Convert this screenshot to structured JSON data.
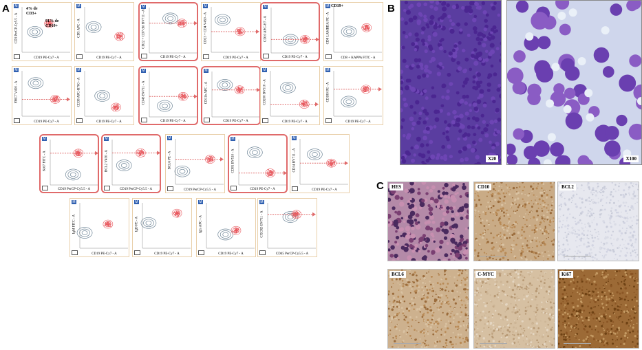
{
  "panels": {
    "a": "A",
    "b": "B",
    "c": "C"
  },
  "colors": {
    "blast": "#e8595f",
    "normal": "#6d8496",
    "highlight": "#e06a6a",
    "frame": "#e9cfa9",
    "giemsa": "#5a2f9c",
    "dab": "#b88a56"
  },
  "plots": [
    {
      "y": "CD3 PerCP-Cy5.5 - A",
      "x": "CD19 PE-Cy7 - A",
      "arrow": "none",
      "highlight": false,
      "anno": [
        "4% de",
        "CD3+",
        "91% de",
        "CD19+"
      ]
    },
    {
      "y": "CD5 APC - A",
      "x": "CD19 PE-Cy7 - A",
      "arrow": "none",
      "highlight": false
    },
    {
      "y": "CD22 + CD7 dbl BV711 - A",
      "x": "CD19 PE-Cy7 - A",
      "arrow": "dashed",
      "highlight": true
    },
    {
      "y": "CD23 + CD4 V450 - A",
      "x": "CD19 PE-Cy7 - A",
      "arrow": "dashed",
      "highlight": false
    },
    {
      "y": "CD10 APC-H7 - A",
      "x": "CD19 PE-Cy7 - A",
      "arrow": "dashed",
      "highlight": true
    },
    {
      "y": "CD8 LAMBDA PE - A",
      "x": "CD8 + KAPPA FITC - A",
      "arrow": "none",
      "highlight": false,
      "anno": [
        "CD19+"
      ]
    },
    {
      "y": "FMC7 V450 - A",
      "x": "CD19 PE-Cy7 - A",
      "arrow": "dashed",
      "highlight": false
    },
    {
      "y": "CD38 APC-R700 - A",
      "x": "CD19 PE-Cy7 - A",
      "arrow": "none",
      "highlight": false
    },
    {
      "y": "CD43 BV711 - A",
      "x": "CD19 PE-Cy7 - A",
      "arrow": "dashed",
      "highlight": true
    },
    {
      "y": "CD11b APC - A",
      "x": "CD19 PE-Cy7 - A",
      "arrow": "dashed",
      "highlight": true
    },
    {
      "y": "CD200 BV510 - A",
      "x": "CD19 PE-Cy7 - A",
      "arrow": "dashed",
      "highlight": false
    },
    {
      "y": "CD180 PE - A",
      "x": "CD19 PE-Cy7 - A",
      "arrow": "dashed",
      "highlight": false
    },
    {
      "y": "Ki67 FITC - A",
      "x": "CD19 PerCP-Cy5.5 - A",
      "arrow": "dashed",
      "highlight": true
    },
    {
      "y": "BCL2 V450 - A",
      "x": "CD19 PerCP-Cy5.5 - A",
      "arrow": "dashed",
      "highlight": true
    },
    {
      "y": "BCL6 PE - A",
      "x": "CD19 PerCP-Cy5.5 - A",
      "arrow": "dashed",
      "highlight": false
    },
    {
      "y": "CD81 BV510 - A",
      "x": "CD19 PE-Cy7 - A",
      "arrow": "dashed",
      "highlight": true
    },
    {
      "y": "CD34 BV711 - A",
      "x": "CD19 PE-Cy7 - A",
      "arrow": "dashed",
      "highlight": false
    },
    {
      "y": "IgM FITC - A",
      "x": "CD19 PE-Cy7 - A",
      "arrow": "none",
      "highlight": false
    },
    {
      "y": "IgD PE - A",
      "x": "CD19 PE-Cy7 - A",
      "arrow": "none",
      "highlight": false
    },
    {
      "y": "IgG APC - A",
      "x": "CD19 PE-Cy7 - A",
      "arrow": "none",
      "highlight": false
    },
    {
      "y": "CXCR5 BV711 - A",
      "x": "CD45 PerCP-Cy5.5 - A",
      "arrow": "dashed",
      "highlight": false
    }
  ],
  "micro": {
    "low": "X20",
    "high": "X100"
  },
  "ihc": {
    "hes": "HES",
    "cd10": "CD10",
    "bcl2": "BCL2",
    "bcl6": "BCL6",
    "cmyc": "C-MYC",
    "ki67": "Ki67"
  }
}
